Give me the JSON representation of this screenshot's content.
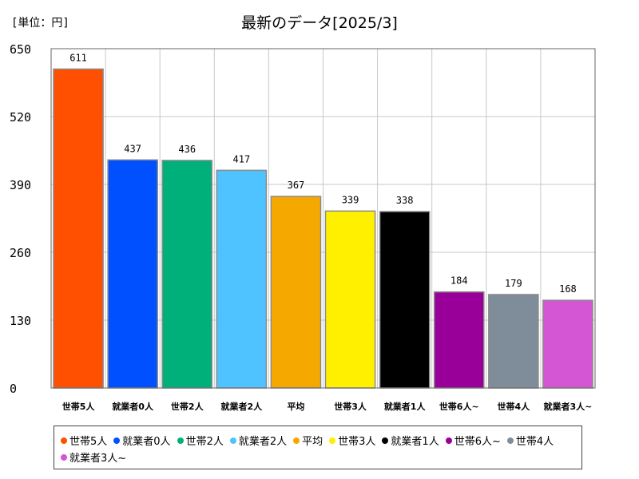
{
  "unit_label": "[単位：円]",
  "chart_data": {
    "type": "bar",
    "title": "最新のデータ[2025/3]",
    "xlabel": "",
    "ylabel": "",
    "ylim": [
      0,
      650
    ],
    "yticks": [
      0,
      130,
      260,
      390,
      520,
      650
    ],
    "grid": true,
    "legend_position": "bottom",
    "categories": [
      "世帯5人",
      "就業者0人",
      "世帯2人",
      "就業者2人",
      "平均",
      "世帯3人",
      "就業者1人",
      "世帯6人~",
      "世帯4人",
      "就業者3人~"
    ],
    "values": [
      611,
      437,
      436,
      417,
      367,
      339,
      338,
      184,
      179,
      168
    ],
    "colors": [
      "#ff4f00",
      "#0050ff",
      "#00b07a",
      "#4fc3ff",
      "#f5a800",
      "#fff000",
      "#000000",
      "#990099",
      "#7f8c99",
      "#d456d4"
    ]
  }
}
